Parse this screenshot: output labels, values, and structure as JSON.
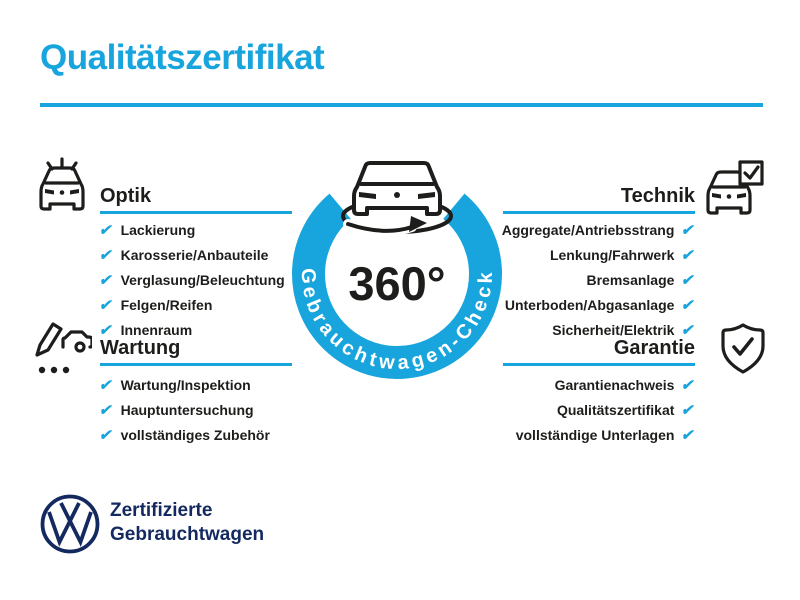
{
  "title": "Qualitätszertifikat",
  "colors": {
    "accent": "#18a4dd",
    "navy": "#14295f",
    "ink": "#1d1d1b"
  },
  "icons": {
    "check": "✔",
    "optik": "car-shine-icon",
    "technik": "car-checkbox-icon",
    "wartung": "pencil-car-checklist-icon",
    "garantie": "shield-check-icon",
    "center": "rotating-car-icon",
    "brand": "vw-logo-icon"
  },
  "sections": [
    {
      "id": "optik",
      "heading": "Optik",
      "side": "left",
      "items": [
        "Lackierung",
        "Karosserie/Anbauteile",
        "Verglasung/Beleuchtung",
        "Felgen/Reifen",
        "Innenraum"
      ]
    },
    {
      "id": "technik",
      "heading": "Technik",
      "side": "right",
      "items": [
        "Aggregate/Antriebsstrang",
        "Lenkung/Fahrwerk",
        "Bremsanlage",
        "Unterboden/Abgasanlage",
        "Sicherheit/Elektrik"
      ]
    },
    {
      "id": "wartung",
      "heading": "Wartung",
      "side": "left",
      "items": [
        "Wartung/Inspektion",
        "Hauptuntersuchung",
        "vollständiges Zubehör"
      ]
    },
    {
      "id": "garantie",
      "heading": "Garantie",
      "side": "right",
      "items": [
        "Garantienachweis",
        "Qualitätszertifikat",
        "vollständige Unterlagen"
      ]
    }
  ],
  "badge": {
    "degrees": "360°",
    "ring_label": "Gebrauchtwagen-Check"
  },
  "footer": {
    "line1": "Zertifizierte",
    "line2": "Gebrauchtwagen"
  }
}
